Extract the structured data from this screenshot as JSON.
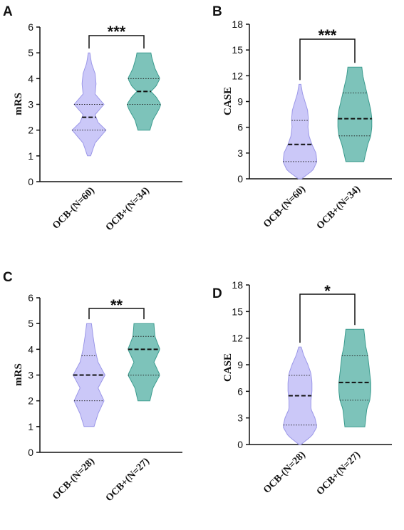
{
  "colors": {
    "ocb_neg_fill": "#c5c2f7",
    "ocb_neg_stroke": "#9b97e8",
    "ocb_pos_fill": "#6fbdb2",
    "ocb_pos_stroke": "#3c9c8f"
  },
  "chart_data": [
    {
      "panel": "A",
      "type": "violin",
      "ylabel": "mRS",
      "ylim": [
        0,
        6
      ],
      "yticks": [
        0,
        1,
        2,
        3,
        4,
        5,
        6
      ],
      "categories": [
        "OCB-(N=60)",
        "OCB+(N=34)"
      ],
      "series": [
        {
          "min": 1,
          "max": 5,
          "q1": 2,
          "median": 2.5,
          "q3": 3,
          "density": [
            [
              1,
              0.08
            ],
            [
              1.5,
              0.3
            ],
            [
              2,
              0.85
            ],
            [
              2.3,
              0.45
            ],
            [
              2.6,
              0.3
            ],
            [
              3,
              0.75
            ],
            [
              3.4,
              0.3
            ],
            [
              3.8,
              0.35
            ],
            [
              4.2,
              0.3
            ],
            [
              4.6,
              0.12
            ],
            [
              5,
              0.04
            ]
          ]
        },
        {
          "min": 2,
          "max": 5,
          "q1": 3,
          "median": 3.5,
          "q3": 4,
          "density": [
            [
              2,
              0.3
            ],
            [
              2.4,
              0.45
            ],
            [
              2.8,
              0.75
            ],
            [
              3,
              0.85
            ],
            [
              3.3,
              0.6
            ],
            [
              3.5,
              0.35
            ],
            [
              3.7,
              0.6
            ],
            [
              4,
              0.8
            ],
            [
              4.4,
              0.55
            ],
            [
              4.8,
              0.4
            ],
            [
              5,
              0.35
            ]
          ]
        }
      ],
      "significance": "***"
    },
    {
      "panel": "B",
      "type": "violin",
      "ylabel": "CASE",
      "ylim": [
        0,
        18
      ],
      "yticks": [
        0,
        3,
        6,
        9,
        12,
        15,
        18
      ],
      "categories": [
        "OCB-(N=60)",
        "OCB+(N=34)"
      ],
      "series": [
        {
          "min": 0,
          "max": 11,
          "q1": 2,
          "median": 4,
          "q3": 6.8,
          "density": [
            [
              0,
              0.08
            ],
            [
              1,
              0.65
            ],
            [
              2,
              0.85
            ],
            [
              3,
              0.8
            ],
            [
              4,
              0.6
            ],
            [
              5,
              0.45
            ],
            [
              6,
              0.4
            ],
            [
              7,
              0.42
            ],
            [
              8,
              0.38
            ],
            [
              9,
              0.25
            ],
            [
              10,
              0.12
            ],
            [
              11,
              0.05
            ]
          ]
        },
        {
          "min": 2,
          "max": 13,
          "q1": 5,
          "median": 7,
          "q3": 10,
          "density": [
            [
              2,
              0.45
            ],
            [
              3,
              0.55
            ],
            [
              4,
              0.65
            ],
            [
              5,
              0.8
            ],
            [
              6,
              0.85
            ],
            [
              7,
              0.85
            ],
            [
              8,
              0.8
            ],
            [
              9,
              0.7
            ],
            [
              10,
              0.6
            ],
            [
              11,
              0.5
            ],
            [
              12,
              0.4
            ],
            [
              13,
              0.35
            ]
          ]
        }
      ],
      "significance": "***"
    },
    {
      "panel": "C",
      "type": "violin",
      "ylabel": "mRS",
      "ylim": [
        0,
        6
      ],
      "yticks": [
        0,
        1,
        2,
        3,
        4,
        5,
        6
      ],
      "categories": [
        "OCB-(N=28)",
        "OCB+(N=27)"
      ],
      "series": [
        {
          "min": 1,
          "max": 5,
          "q1": 2,
          "median": 3,
          "q3": 3.75,
          "density": [
            [
              1,
              0.25
            ],
            [
              1.5,
              0.45
            ],
            [
              2,
              0.75
            ],
            [
              2.5,
              0.45
            ],
            [
              3,
              0.8
            ],
            [
              3.5,
              0.45
            ],
            [
              4,
              0.3
            ],
            [
              4.5,
              0.2
            ],
            [
              5,
              0.12
            ]
          ]
        },
        {
          "min": 2,
          "max": 5,
          "q1": 3,
          "median": 4,
          "q3": 4.5,
          "density": [
            [
              2,
              0.3
            ],
            [
              2.5,
              0.45
            ],
            [
              3,
              0.8
            ],
            [
              3.5,
              0.5
            ],
            [
              4,
              0.8
            ],
            [
              4.5,
              0.55
            ],
            [
              5,
              0.5
            ]
          ]
        }
      ],
      "significance": "**"
    },
    {
      "panel": "D",
      "type": "violin",
      "ylabel": "CASE",
      "ylim": [
        0,
        18
      ],
      "yticks": [
        0,
        3,
        6,
        9,
        12,
        15,
        18
      ],
      "categories": [
        "OCB-(N=28)",
        "OCB+(N=27)"
      ],
      "series": [
        {
          "min": 0,
          "max": 11,
          "q1": 2.2,
          "median": 5.5,
          "q3": 7.8,
          "density": [
            [
              0,
              0.05
            ],
            [
              1,
              0.6
            ],
            [
              2,
              0.85
            ],
            [
              3,
              0.75
            ],
            [
              4,
              0.55
            ],
            [
              5,
              0.55
            ],
            [
              6,
              0.6
            ],
            [
              7,
              0.6
            ],
            [
              8,
              0.55
            ],
            [
              9,
              0.4
            ],
            [
              10,
              0.2
            ],
            [
              11,
              0.06
            ]
          ]
        },
        {
          "min": 2,
          "max": 13,
          "q1": 5,
          "median": 7,
          "q3": 10,
          "density": [
            [
              2,
              0.5
            ],
            [
              3,
              0.55
            ],
            [
              4,
              0.6
            ],
            [
              5,
              0.75
            ],
            [
              6,
              0.8
            ],
            [
              7,
              0.8
            ],
            [
              8,
              0.75
            ],
            [
              9,
              0.7
            ],
            [
              10,
              0.65
            ],
            [
              11,
              0.55
            ],
            [
              12,
              0.5
            ],
            [
              13,
              0.45
            ]
          ]
        }
      ],
      "significance": "*"
    }
  ]
}
